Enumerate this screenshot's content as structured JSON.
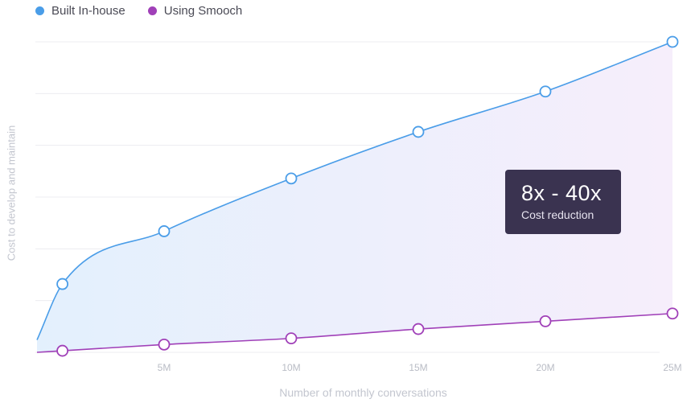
{
  "legend": [
    {
      "label": "Built In-house",
      "color": "#4a9de8"
    },
    {
      "label": "Using Smooch",
      "color": "#a040b8"
    }
  ],
  "tooltip": {
    "title": "8x - 40x",
    "subtitle": "Cost reduction"
  },
  "chart_data": {
    "type": "line",
    "xlabel": "Number of monthly conversations",
    "ylabel": "Cost to develop and maintain",
    "x_ticks": [
      "5M",
      "10M",
      "15M",
      "20M",
      "25M"
    ],
    "x_tick_values": [
      5,
      10,
      15,
      20,
      25
    ],
    "xlim": [
      0,
      25
    ],
    "ylim": [
      0,
      100
    ],
    "grid": true,
    "legend_position": "top-left",
    "series": [
      {
        "name": "Built In-house",
        "color": "#4a9de8",
        "x": [
          0,
          1,
          5,
          10,
          15,
          20,
          25
        ],
        "y": [
          4,
          22,
          39,
          56,
          71,
          84,
          100
        ]
      },
      {
        "name": "Using Smooch",
        "color": "#a040b8",
        "x": [
          0,
          1,
          5,
          10,
          15,
          20,
          25
        ],
        "y": [
          0,
          0.5,
          2.5,
          4.5,
          7.5,
          10,
          12.5
        ]
      }
    ],
    "marker_points": [
      1,
      5,
      10,
      15,
      20,
      25
    ]
  }
}
